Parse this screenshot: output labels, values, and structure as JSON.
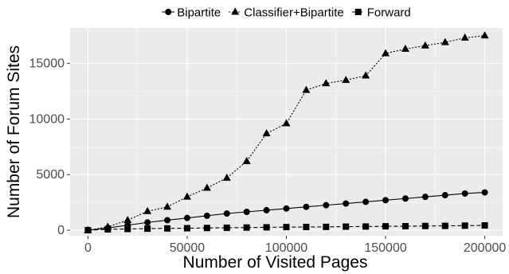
{
  "chart_data": {
    "type": "line",
    "xlabel": "Number of Visited Pages",
    "ylabel": "Number of Forum Sites",
    "xlim": [
      -9000,
      209000
    ],
    "ylim": [
      -500,
      18200
    ],
    "x_ticks": [
      0,
      50000,
      100000,
      150000,
      200000
    ],
    "y_ticks": [
      0,
      5000,
      10000,
      15000
    ],
    "x_tick_labels": [
      "0",
      "50000",
      "100000",
      "150000",
      "200000"
    ],
    "y_tick_labels": [
      "0",
      "5000",
      "10000",
      "15000"
    ],
    "grid": true,
    "legend_position": "top",
    "x": [
      0,
      10000,
      20000,
      30000,
      40000,
      50000,
      60000,
      70000,
      80000,
      90000,
      100000,
      110000,
      120000,
      130000,
      140000,
      150000,
      160000,
      170000,
      180000,
      190000,
      200000
    ],
    "series": [
      {
        "name": "Bipartite",
        "marker": "circle",
        "line_style": "solid",
        "values": [
          0,
          200,
          450,
          700,
          900,
          1100,
          1300,
          1500,
          1650,
          1800,
          1950,
          2100,
          2250,
          2400,
          2550,
          2700,
          2850,
          3000,
          3150,
          3300,
          3400
        ]
      },
      {
        "name": "Classifier+Bipartite",
        "marker": "triangle",
        "line_style": "dotted",
        "values": [
          0,
          300,
          900,
          1700,
          2100,
          3000,
          3800,
          4700,
          6200,
          8700,
          9600,
          12600,
          13200,
          13500,
          13900,
          15900,
          16300,
          16600,
          16900,
          17300,
          17500
        ]
      },
      {
        "name": "Forward",
        "marker": "square",
        "line_style": "dashed",
        "values": [
          0,
          80,
          110,
          140,
          160,
          180,
          200,
          220,
          240,
          260,
          280,
          290,
          300,
          320,
          330,
          350,
          360,
          380,
          390,
          410,
          430
        ]
      }
    ]
  },
  "colors": {
    "panel_background": "#ebebeb",
    "grid_major": "#ffffff",
    "grid_minor": "#f5f5f5",
    "series_color": "#000000"
  }
}
